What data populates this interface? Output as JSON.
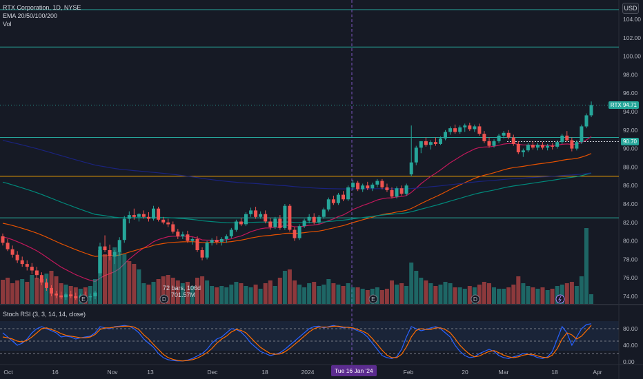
{
  "header": {
    "symbol_line": "RTX Corporation, 1D, NYSE",
    "ema_line": "EMA 20/50/100/200",
    "vol_line": "Vol",
    "currency": "USD"
  },
  "price_axis": {
    "ticks": [
      "104.00",
      "102.00",
      "100.00",
      "98.00",
      "96.00",
      "94.00",
      "92.00",
      "90.00",
      "88.00",
      "86.00",
      "84.00",
      "82.00",
      "80.00",
      "78.00",
      "76.00",
      "74.00"
    ]
  },
  "price_tags": {
    "last_symbol": "RTX",
    "last_value": "94.71",
    "last_color": "#26a69a",
    "line_value": "90.70",
    "line_color": "#26a69a"
  },
  "measure_tooltip": {
    "line1": "72 bars, 106d",
    "line2": "701.57M"
  },
  "rsi": {
    "title": "Stoch RSI (3, 3, 14, 14, close)",
    "ticks": [
      "80.00",
      "40.00",
      "0.00"
    ]
  },
  "time_axis": {
    "labels": [
      "Oct",
      "16",
      "Nov",
      "13",
      "Dec",
      "18",
      "2024",
      "Feb",
      "20",
      "Mar",
      "18",
      "Apr"
    ],
    "highlight": "Tue 16 Jan '24"
  },
  "event_markers": [
    "E",
    "D",
    "E",
    "D"
  ],
  "colors": {
    "up": "#26a69a",
    "down": "#ef5350",
    "ema20": "#c2185b",
    "ema50": "#e65100",
    "ema100": "#00897b",
    "ema200": "#1a237e",
    "hline_teal": "#26a69a",
    "hline_orange": "#f7a600",
    "k_line": "#2962ff",
    "d_line": "#ff6d00"
  },
  "chart_data": {
    "type": "candlestick",
    "title": "RTX Corporation, 1D, NYSE",
    "ylim": [
      73,
      105
    ],
    "ohlc": [
      [
        80.5,
        80.8,
        79.5,
        79.8
      ],
      [
        79.8,
        80.2,
        78.9,
        79.1
      ],
      [
        79.1,
        79.5,
        78.2,
        78.5
      ],
      [
        78.5,
        78.9,
        77.6,
        77.9
      ],
      [
        77.9,
        78.3,
        77.2,
        77.5
      ],
      [
        77.5,
        77.9,
        76.8,
        77.2
      ],
      [
        77.2,
        77.6,
        76.4,
        76.8
      ],
      [
        76.8,
        77.2,
        75.9,
        76.3
      ],
      [
        76.3,
        76.6,
        75.2,
        75.5
      ],
      [
        75.5,
        75.9,
        74.6,
        74.9
      ],
      [
        74.9,
        75.2,
        74.0,
        74.3
      ],
      [
        74.3,
        74.6,
        73.8,
        74.1
      ],
      [
        74.1,
        74.5,
        73.7,
        73.9
      ],
      [
        73.9,
        74.4,
        73.6,
        74.2
      ],
      [
        74.2,
        74.6,
        73.8,
        74.0
      ],
      [
        74.0,
        74.4,
        73.6,
        73.8
      ],
      [
        73.8,
        74.3,
        73.5,
        74.1
      ],
      [
        74.1,
        74.5,
        73.7,
        73.9
      ],
      [
        73.9,
        74.3,
        73.5,
        74.0
      ],
      [
        74.0,
        74.6,
        73.7,
        74.4
      ],
      [
        76.5,
        79.8,
        76.2,
        79.4
      ],
      [
        79.4,
        80.6,
        78.8,
        79.0
      ],
      [
        79.0,
        79.6,
        77.9,
        78.3
      ],
      [
        78.3,
        79.0,
        77.5,
        78.8
      ],
      [
        78.8,
        80.4,
        78.4,
        80.1
      ],
      [
        80.1,
        82.7,
        79.8,
        82.4
      ],
      [
        82.4,
        83.2,
        81.9,
        82.8
      ],
      [
        82.8,
        83.5,
        82.3,
        82.6
      ],
      [
        82.6,
        83.0,
        82.1,
        82.9
      ],
      [
        82.9,
        83.3,
        82.4,
        82.6
      ],
      [
        82.6,
        83.1,
        82.1,
        82.4
      ],
      [
        82.4,
        83.8,
        82.2,
        83.5
      ],
      [
        83.5,
        83.7,
        82.1,
        82.3
      ],
      [
        82.3,
        82.6,
        81.8,
        82.0
      ],
      [
        82.0,
        82.4,
        81.5,
        81.8
      ],
      [
        81.8,
        82.1,
        80.8,
        81.0
      ],
      [
        81.0,
        81.3,
        80.2,
        80.5
      ],
      [
        80.5,
        81.0,
        80.2,
        80.7
      ],
      [
        80.7,
        81.1,
        79.8,
        80.0
      ],
      [
        80.0,
        80.4,
        79.6,
        80.2
      ],
      [
        80.2,
        80.5,
        78.8,
        79.0
      ],
      [
        79.0,
        79.3,
        77.9,
        78.2
      ],
      [
        78.2,
        80.0,
        78.0,
        79.8
      ],
      [
        79.8,
        80.3,
        79.5,
        80.1
      ],
      [
        80.1,
        80.5,
        79.6,
        79.9
      ],
      [
        79.9,
        80.4,
        79.5,
        80.2
      ],
      [
        80.2,
        80.7,
        79.8,
        80.5
      ],
      [
        80.5,
        81.4,
        80.3,
        81.2
      ],
      [
        81.2,
        82.3,
        81.0,
        82.1
      ],
      [
        82.1,
        82.5,
        81.6,
        81.8
      ],
      [
        81.8,
        83.1,
        81.6,
        82.9
      ],
      [
        82.9,
        83.6,
        82.6,
        83.3
      ],
      [
        83.3,
        83.7,
        82.4,
        82.6
      ],
      [
        82.6,
        83.2,
        82.4,
        82.9
      ],
      [
        82.9,
        83.3,
        81.9,
        82.1
      ],
      [
        82.1,
        82.5,
        81.2,
        81.5
      ],
      [
        81.5,
        82.6,
        81.3,
        82.4
      ],
      [
        82.4,
        82.8,
        81.2,
        81.4
      ],
      [
        81.4,
        84.0,
        81.2,
        83.8
      ],
      [
        83.8,
        84.0,
        81.0,
        81.2
      ],
      [
        81.2,
        81.5,
        80.0,
        80.3
      ],
      [
        80.3,
        81.8,
        80.1,
        81.6
      ],
      [
        81.6,
        82.4,
        81.4,
        82.2
      ],
      [
        82.2,
        82.9,
        81.9,
        82.6
      ],
      [
        82.6,
        83.0,
        81.8,
        82.0
      ],
      [
        82.0,
        82.8,
        81.8,
        82.6
      ],
      [
        82.6,
        83.6,
        82.4,
        83.4
      ],
      [
        83.4,
        84.7,
        83.2,
        84.5
      ],
      [
        84.5,
        84.9,
        83.9,
        84.1
      ],
      [
        84.1,
        85.2,
        83.9,
        85.0
      ],
      [
        85.0,
        85.4,
        84.3,
        84.5
      ],
      [
        84.5,
        86.0,
        84.3,
        85.8
      ],
      [
        85.8,
        86.6,
        85.5,
        86.3
      ],
      [
        86.3,
        86.5,
        85.4,
        85.6
      ],
      [
        85.6,
        86.2,
        85.3,
        86.0
      ],
      [
        86.0,
        86.4,
        85.5,
        85.7
      ],
      [
        85.7,
        86.3,
        85.4,
        86.1
      ],
      [
        86.1,
        86.7,
        85.8,
        86.5
      ],
      [
        86.5,
        86.7,
        85.6,
        85.8
      ],
      [
        85.8,
        86.2,
        85.3,
        85.5
      ],
      [
        85.5,
        85.8,
        84.6,
        84.8
      ],
      [
        84.8,
        85.9,
        84.6,
        85.7
      ],
      [
        85.7,
        86.0,
        84.9,
        85.1
      ],
      [
        85.1,
        86.2,
        84.9,
        86.0
      ],
      [
        87.2,
        92.5,
        87.0,
        88.5
      ],
      [
        88.5,
        90.3,
        88.2,
        90.1
      ],
      [
        90.1,
        90.8,
        89.5,
        90.8
      ],
      [
        90.8,
        91.2,
        90.2,
        90.4
      ],
      [
        90.4,
        90.9,
        89.9,
        90.7
      ],
      [
        90.7,
        91.2,
        90.3,
        90.5
      ],
      [
        90.5,
        91.3,
        90.4,
        91.1
      ],
      [
        91.1,
        92.0,
        90.9,
        91.8
      ],
      [
        91.8,
        92.4,
        91.5,
        92.2
      ],
      [
        92.2,
        92.6,
        91.6,
        91.8
      ],
      [
        91.8,
        92.5,
        91.6,
        92.3
      ],
      [
        92.3,
        92.7,
        91.8,
        92.5
      ],
      [
        92.5,
        92.8,
        91.9,
        92.1
      ],
      [
        92.1,
        92.6,
        91.8,
        92.4
      ],
      [
        92.4,
        92.7,
        91.4,
        91.6
      ],
      [
        91.6,
        91.9,
        90.6,
        90.8
      ],
      [
        90.8,
        91.2,
        90.1,
        90.3
      ],
      [
        90.3,
        91.0,
        90.1,
        90.8
      ],
      [
        90.8,
        91.6,
        90.6,
        91.4
      ],
      [
        91.4,
        91.9,
        91.1,
        91.7
      ],
      [
        91.7,
        92.0,
        91.0,
        91.2
      ],
      [
        91.2,
        91.5,
        90.3,
        90.5
      ],
      [
        90.5,
        90.8,
        89.4,
        89.6
      ],
      [
        89.6,
        90.0,
        89.1,
        89.8
      ],
      [
        89.8,
        90.6,
        89.6,
        90.4
      ],
      [
        90.4,
        90.8,
        89.9,
        90.1
      ],
      [
        90.1,
        90.6,
        89.8,
        90.4
      ],
      [
        90.4,
        90.7,
        89.9,
        90.1
      ],
      [
        90.1,
        90.5,
        89.8,
        90.3
      ],
      [
        90.3,
        90.6,
        89.9,
        90.2
      ],
      [
        90.2,
        90.9,
        90.0,
        90.7
      ],
      [
        90.7,
        91.6,
        90.5,
        91.4
      ],
      [
        91.4,
        91.9,
        90.8,
        90.9
      ],
      [
        90.9,
        91.2,
        89.7,
        90.0
      ],
      [
        90.0,
        90.9,
        89.8,
        90.7
      ],
      [
        90.7,
        92.6,
        90.5,
        92.4
      ],
      [
        92.4,
        93.8,
        92.2,
        93.6
      ],
      [
        93.6,
        95.1,
        93.4,
        94.71
      ]
    ],
    "volume": [
      [
        35,
        "d"
      ],
      [
        38,
        "d"
      ],
      [
        30,
        "d"
      ],
      [
        34,
        "d"
      ],
      [
        36,
        "u"
      ],
      [
        32,
        "d"
      ],
      [
        42,
        "u"
      ],
      [
        38,
        "d"
      ],
      [
        36,
        "d"
      ],
      [
        44,
        "u"
      ],
      [
        48,
        "d"
      ],
      [
        40,
        "d"
      ],
      [
        30,
        "d"
      ],
      [
        28,
        "u"
      ],
      [
        26,
        "d"
      ],
      [
        24,
        "d"
      ],
      [
        22,
        "u"
      ],
      [
        24,
        "d"
      ],
      [
        26,
        "u"
      ],
      [
        36,
        "u"
      ],
      [
        78,
        "u"
      ],
      [
        72,
        "d"
      ],
      [
        68,
        "d"
      ],
      [
        82,
        "u"
      ],
      [
        76,
        "u"
      ],
      [
        72,
        "u"
      ],
      [
        62,
        "d"
      ],
      [
        58,
        "d"
      ],
      [
        50,
        "u"
      ],
      [
        30,
        "u"
      ],
      [
        28,
        "d"
      ],
      [
        32,
        "u"
      ],
      [
        36,
        "d"
      ],
      [
        40,
        "d"
      ],
      [
        42,
        "d"
      ],
      [
        38,
        "d"
      ],
      [
        34,
        "d"
      ],
      [
        30,
        "u"
      ],
      [
        32,
        "d"
      ],
      [
        26,
        "u"
      ],
      [
        38,
        "d"
      ],
      [
        40,
        "d"
      ],
      [
        34,
        "u"
      ],
      [
        26,
        "u"
      ],
      [
        24,
        "d"
      ],
      [
        26,
        "u"
      ],
      [
        24,
        "u"
      ],
      [
        28,
        "u"
      ],
      [
        32,
        "u"
      ],
      [
        30,
        "d"
      ],
      [
        26,
        "u"
      ],
      [
        24,
        "u"
      ],
      [
        28,
        "d"
      ],
      [
        22,
        "u"
      ],
      [
        30,
        "d"
      ],
      [
        34,
        "d"
      ],
      [
        26,
        "u"
      ],
      [
        38,
        "d"
      ],
      [
        48,
        "u"
      ],
      [
        50,
        "d"
      ],
      [
        34,
        "d"
      ],
      [
        28,
        "u"
      ],
      [
        24,
        "u"
      ],
      [
        30,
        "u"
      ],
      [
        32,
        "d"
      ],
      [
        26,
        "u"
      ],
      [
        28,
        "u"
      ],
      [
        36,
        "u"
      ],
      [
        30,
        "d"
      ],
      [
        28,
        "u"
      ],
      [
        26,
        "d"
      ],
      [
        30,
        "u"
      ],
      [
        24,
        "u"
      ],
      [
        24,
        "d"
      ],
      [
        22,
        "u"
      ],
      [
        20,
        "d"
      ],
      [
        22,
        "u"
      ],
      [
        24,
        "u"
      ],
      [
        20,
        "d"
      ],
      [
        22,
        "d"
      ],
      [
        34,
        "d"
      ],
      [
        28,
        "u"
      ],
      [
        30,
        "d"
      ],
      [
        26,
        "u"
      ],
      [
        60,
        "u"
      ],
      [
        48,
        "u"
      ],
      [
        38,
        "u"
      ],
      [
        34,
        "d"
      ],
      [
        30,
        "u"
      ],
      [
        26,
        "d"
      ],
      [
        28,
        "u"
      ],
      [
        32,
        "u"
      ],
      [
        30,
        "u"
      ],
      [
        24,
        "d"
      ],
      [
        24,
        "u"
      ],
      [
        22,
        "u"
      ],
      [
        26,
        "d"
      ],
      [
        24,
        "u"
      ],
      [
        28,
        "d"
      ],
      [
        32,
        "d"
      ],
      [
        30,
        "d"
      ],
      [
        24,
        "u"
      ],
      [
        22,
        "u"
      ],
      [
        22,
        "u"
      ],
      [
        24,
        "d"
      ],
      [
        28,
        "d"
      ],
      [
        40,
        "d"
      ],
      [
        30,
        "u"
      ],
      [
        26,
        "u"
      ],
      [
        24,
        "d"
      ],
      [
        22,
        "u"
      ],
      [
        24,
        "d"
      ],
      [
        20,
        "u"
      ],
      [
        22,
        "d"
      ],
      [
        26,
        "u"
      ],
      [
        28,
        "u"
      ],
      [
        30,
        "d"
      ],
      [
        32,
        "d"
      ],
      [
        26,
        "u"
      ],
      [
        40,
        "u"
      ],
      [
        110,
        "u"
      ],
      [
        14,
        "u"
      ]
    ],
    "horizontal_levels": [
      105.0,
      101.0,
      91.2,
      87.0,
      82.5
    ],
    "rsi_k": [
      70,
      60,
      50,
      40,
      45,
      55,
      70,
      80,
      85,
      80,
      75,
      70,
      60,
      62,
      60,
      55,
      58,
      60,
      62,
      70,
      85,
      82,
      80,
      85,
      86,
      88,
      86,
      80,
      70,
      55,
      45,
      35,
      20,
      10,
      5,
      3,
      2,
      2,
      4,
      8,
      14,
      20,
      30,
      45,
      55,
      60,
      70,
      80,
      78,
      72,
      60,
      45,
      35,
      25,
      20,
      15,
      18,
      22,
      30,
      40,
      50,
      60,
      70,
      80,
      85,
      86,
      82,
      85,
      88,
      85,
      82,
      84,
      80,
      75,
      70,
      60,
      45,
      30,
      15,
      10,
      8,
      12,
      30,
      60,
      85,
      80,
      75,
      78,
      82,
      85,
      80,
      70,
      60,
      40,
      25,
      15,
      10,
      12,
      20,
      25,
      30,
      25,
      15,
      10,
      8,
      12,
      15,
      20,
      18,
      15,
      10,
      8,
      12,
      25,
      55,
      85,
      70,
      40,
      60,
      80,
      90,
      92
    ],
    "rsi_d": [
      60,
      58,
      55,
      50,
      48,
      52,
      60,
      70,
      80,
      82,
      78,
      74,
      68,
      64,
      62,
      60,
      58,
      58,
      60,
      66,
      78,
      82,
      82,
      84,
      85,
      86,
      86,
      84,
      78,
      65,
      55,
      42,
      30,
      18,
      10,
      6,
      3,
      2,
      3,
      5,
      9,
      15,
      22,
      32,
      45,
      55,
      62,
      72,
      78,
      76,
      70,
      58,
      46,
      35,
      27,
      20,
      18,
      19,
      24,
      32,
      42,
      52,
      62,
      72,
      80,
      84,
      84,
      84,
      86,
      86,
      84,
      83,
      82,
      78,
      74,
      68,
      56,
      42,
      28,
      16,
      10,
      10,
      18,
      36,
      60,
      76,
      80,
      78,
      78,
      82,
      82,
      78,
      70,
      56,
      40,
      28,
      18,
      12,
      14,
      20,
      25,
      27,
      22,
      16,
      12,
      10,
      12,
      16,
      18,
      18,
      14,
      11,
      10,
      16,
      32,
      55,
      70,
      65,
      55,
      62,
      75,
      88
    ]
  }
}
